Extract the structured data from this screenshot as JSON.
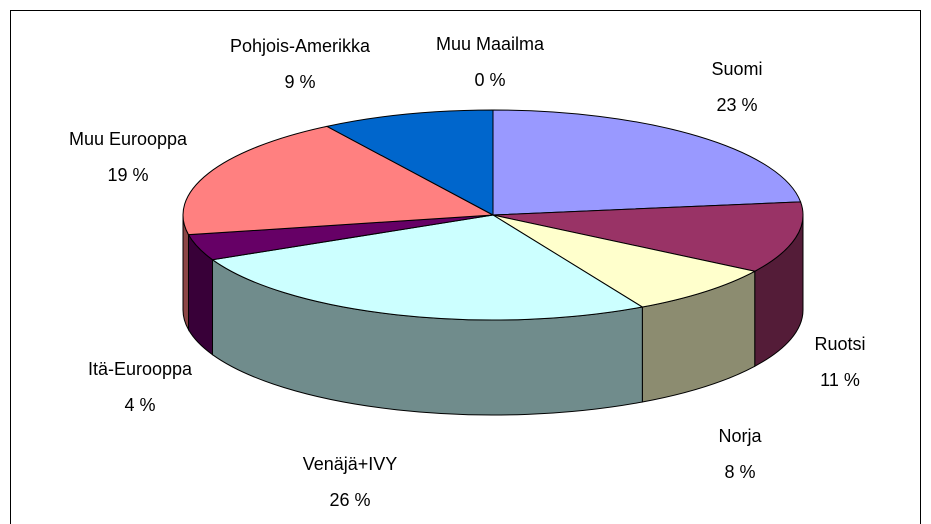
{
  "chart_data": {
    "type": "pie3d",
    "categories": [
      "Suomi",
      "Ruotsi",
      "Norja",
      "Venäjä+IVY",
      "Itä-Eurooppa",
      "Muu Eurooppa",
      "Pohjois-Amerikka",
      "Muu Maailma"
    ],
    "values": [
      23,
      11,
      8,
      26,
      4,
      19,
      9,
      0
    ],
    "value_labels": [
      "23 %",
      "11 %",
      "8 %",
      "26 %",
      "4 %",
      "19 %",
      "9 %",
      "0 %"
    ],
    "colors": [
      "#9999ff",
      "#993366",
      "#ffffcc",
      "#ccffff",
      "#660066",
      "#ff8080",
      "#0066cc",
      "#ccccff"
    ]
  }
}
